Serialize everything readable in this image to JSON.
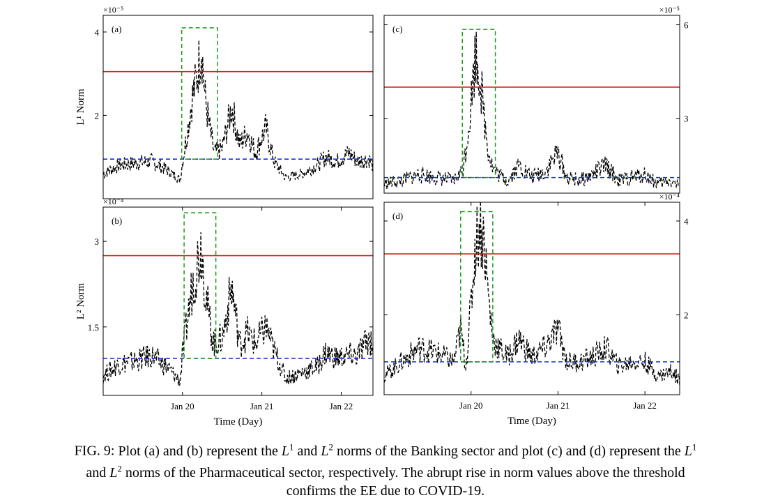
{
  "caption": {
    "prefix": "FIG. 9:",
    "text_html": "Plot (a) and (b) represent the <i>L</i><sup>1</sup> and <i>L</i><sup>2</sup> norms of the Banking sector and plot (c) and (d) represent the <i>L</i><sup>1</sup><br>and <i>L</i><sup>2</sup> norms of the Pharmaceutical sector, respectively. The abrupt rise in norm values above the threshold<br>confirms the EE due to COVID-19."
  },
  "chart_data": [
    {
      "id": "a",
      "panel_label": "(a)",
      "type": "line",
      "ylabel": "L¹ Norm",
      "y_exponent": "×10⁻⁵",
      "y_axis_side": "left",
      "xlabel": "",
      "xticks": [],
      "ylim": [
        0.0,
        4.4
      ],
      "yticks": [
        {
          "value": 2,
          "label": "2"
        },
        {
          "value": 4,
          "label": "4"
        }
      ],
      "threshold": 3.05,
      "baseline": 0.95,
      "event_window": {
        "x": [
          19.99,
          20.44
        ],
        "y": [
          0.95,
          4.1
        ]
      },
      "series": {
        "x": [
          19.0,
          19.2,
          19.4,
          19.6,
          19.8,
          19.97,
          20.0,
          20.06,
          20.12,
          20.18,
          20.24,
          20.28,
          20.34,
          20.4,
          20.5,
          20.62,
          20.72,
          20.82,
          20.92,
          21.05,
          21.15,
          21.3,
          21.5,
          21.7,
          21.8,
          21.95,
          22.1,
          22.2,
          22.35,
          22.4
        ],
        "y": [
          0.6,
          0.8,
          0.85,
          0.9,
          0.7,
          0.45,
          0.9,
          1.6,
          2.4,
          2.9,
          3.7,
          2.5,
          1.7,
          1.1,
          1.2,
          2.2,
          1.3,
          1.6,
          1.1,
          1.7,
          0.9,
          0.5,
          0.6,
          0.8,
          1.0,
          0.9,
          1.1,
          0.9,
          0.95,
          0.8
        ]
      }
    },
    {
      "id": "b",
      "panel_label": "(b)",
      "type": "line",
      "ylabel": "L² Norm",
      "y_exponent": "×10⁻⁴",
      "y_axis_side": "left",
      "xlabel": "Time (Day)",
      "xticks": [
        {
          "value": 20,
          "label": "Jan 20"
        },
        {
          "value": 21,
          "label": "Jan 21"
        },
        {
          "value": 22,
          "label": "Jan 22"
        }
      ],
      "ylim": [
        0.3,
        3.6
      ],
      "yticks": [
        {
          "value": 1.5,
          "label": "1.5"
        },
        {
          "value": 3,
          "label": "3"
        }
      ],
      "threshold": 2.75,
      "baseline": 0.95,
      "event_window": {
        "x": [
          20.02,
          20.42
        ],
        "y": [
          0.95,
          3.5
        ]
      },
      "series": {
        "x": [
          19.0,
          19.2,
          19.4,
          19.6,
          19.8,
          19.97,
          20.0,
          20.06,
          20.12,
          20.18,
          20.24,
          20.28,
          20.34,
          20.4,
          20.5,
          20.62,
          20.72,
          20.82,
          20.92,
          21.05,
          21.15,
          21.3,
          21.5,
          21.7,
          21.8,
          21.95,
          22.1,
          22.2,
          22.35,
          22.4
        ],
        "y": [
          0.65,
          0.85,
          0.9,
          1.0,
          0.8,
          0.55,
          1.0,
          1.6,
          2.2,
          2.6,
          2.95,
          2.3,
          1.6,
          1.2,
          1.3,
          2.2,
          1.2,
          1.4,
          1.2,
          1.5,
          1.1,
          0.6,
          0.7,
          0.8,
          1.05,
          0.95,
          1.0,
          1.0,
          1.3,
          1.2
        ]
      }
    },
    {
      "id": "c",
      "panel_label": "(c)",
      "type": "line",
      "ylabel": "",
      "y_exponent": "×10⁻⁵",
      "y_axis_side": "right",
      "xlabel": "",
      "xticks": [],
      "ylim": [
        0.6,
        6.3
      ],
      "yticks": [
        {
          "value": 3,
          "label": "3"
        },
        {
          "value": 6,
          "label": "6"
        }
      ],
      "threshold": 4.0,
      "baseline": 1.1,
      "event_window": {
        "x": [
          19.9,
          20.28
        ],
        "y": [
          1.1,
          5.85
        ]
      },
      "series": {
        "x": [
          19.0,
          19.2,
          19.4,
          19.6,
          19.8,
          19.9,
          19.95,
          20.0,
          20.05,
          20.1,
          20.15,
          20.2,
          20.25,
          20.32,
          20.42,
          20.55,
          20.7,
          20.85,
          21.0,
          21.1,
          21.25,
          21.4,
          21.55,
          21.7,
          21.85,
          22.0,
          22.15,
          22.3,
          22.42
        ],
        "y": [
          0.9,
          1.0,
          1.2,
          1.1,
          1.0,
          1.3,
          2.2,
          3.5,
          5.1,
          4.5,
          3.0,
          2.0,
          1.4,
          1.2,
          1.0,
          1.5,
          1.1,
          1.3,
          1.9,
          1.1,
          1.0,
          1.2,
          1.5,
          1.0,
          1.1,
          1.2,
          0.9,
          1.0,
          0.8
        ]
      }
    },
    {
      "id": "d",
      "panel_label": "(d)",
      "type": "line",
      "ylabel": "",
      "y_exponent": "×10⁻⁴",
      "y_axis_side": "right",
      "xlabel": "Time (Day)",
      "xticks": [
        {
          "value": 20,
          "label": "Jan 20"
        },
        {
          "value": 21,
          "label": "Jan 21"
        },
        {
          "value": 22,
          "label": "Jan 22"
        }
      ],
      "ylim": [
        0.3,
        4.4
      ],
      "yticks": [
        {
          "value": 2,
          "label": "2"
        },
        {
          "value": 4,
          "label": "4"
        }
      ],
      "threshold": 3.3,
      "baseline": 1.0,
      "event_window": {
        "x": [
          19.88,
          20.25
        ],
        "y": [
          1.0,
          4.2
        ]
      },
      "series": {
        "x": [
          19.0,
          19.2,
          19.4,
          19.6,
          19.8,
          19.88,
          19.94,
          20.0,
          20.05,
          20.1,
          20.15,
          20.2,
          20.25,
          20.32,
          20.42,
          20.55,
          20.7,
          20.85,
          21.0,
          21.1,
          21.25,
          21.4,
          21.55,
          21.7,
          21.85,
          22.0,
          22.15,
          22.3,
          22.42
        ],
        "y": [
          0.7,
          1.0,
          1.3,
          1.2,
          1.0,
          1.7,
          0.9,
          2.2,
          3.5,
          3.9,
          3.6,
          2.4,
          1.5,
          1.3,
          1.1,
          1.5,
          1.1,
          1.3,
          1.7,
          1.0,
          1.0,
          1.1,
          1.3,
          0.9,
          1.0,
          1.0,
          0.7,
          0.8,
          0.6
        ]
      }
    }
  ]
}
